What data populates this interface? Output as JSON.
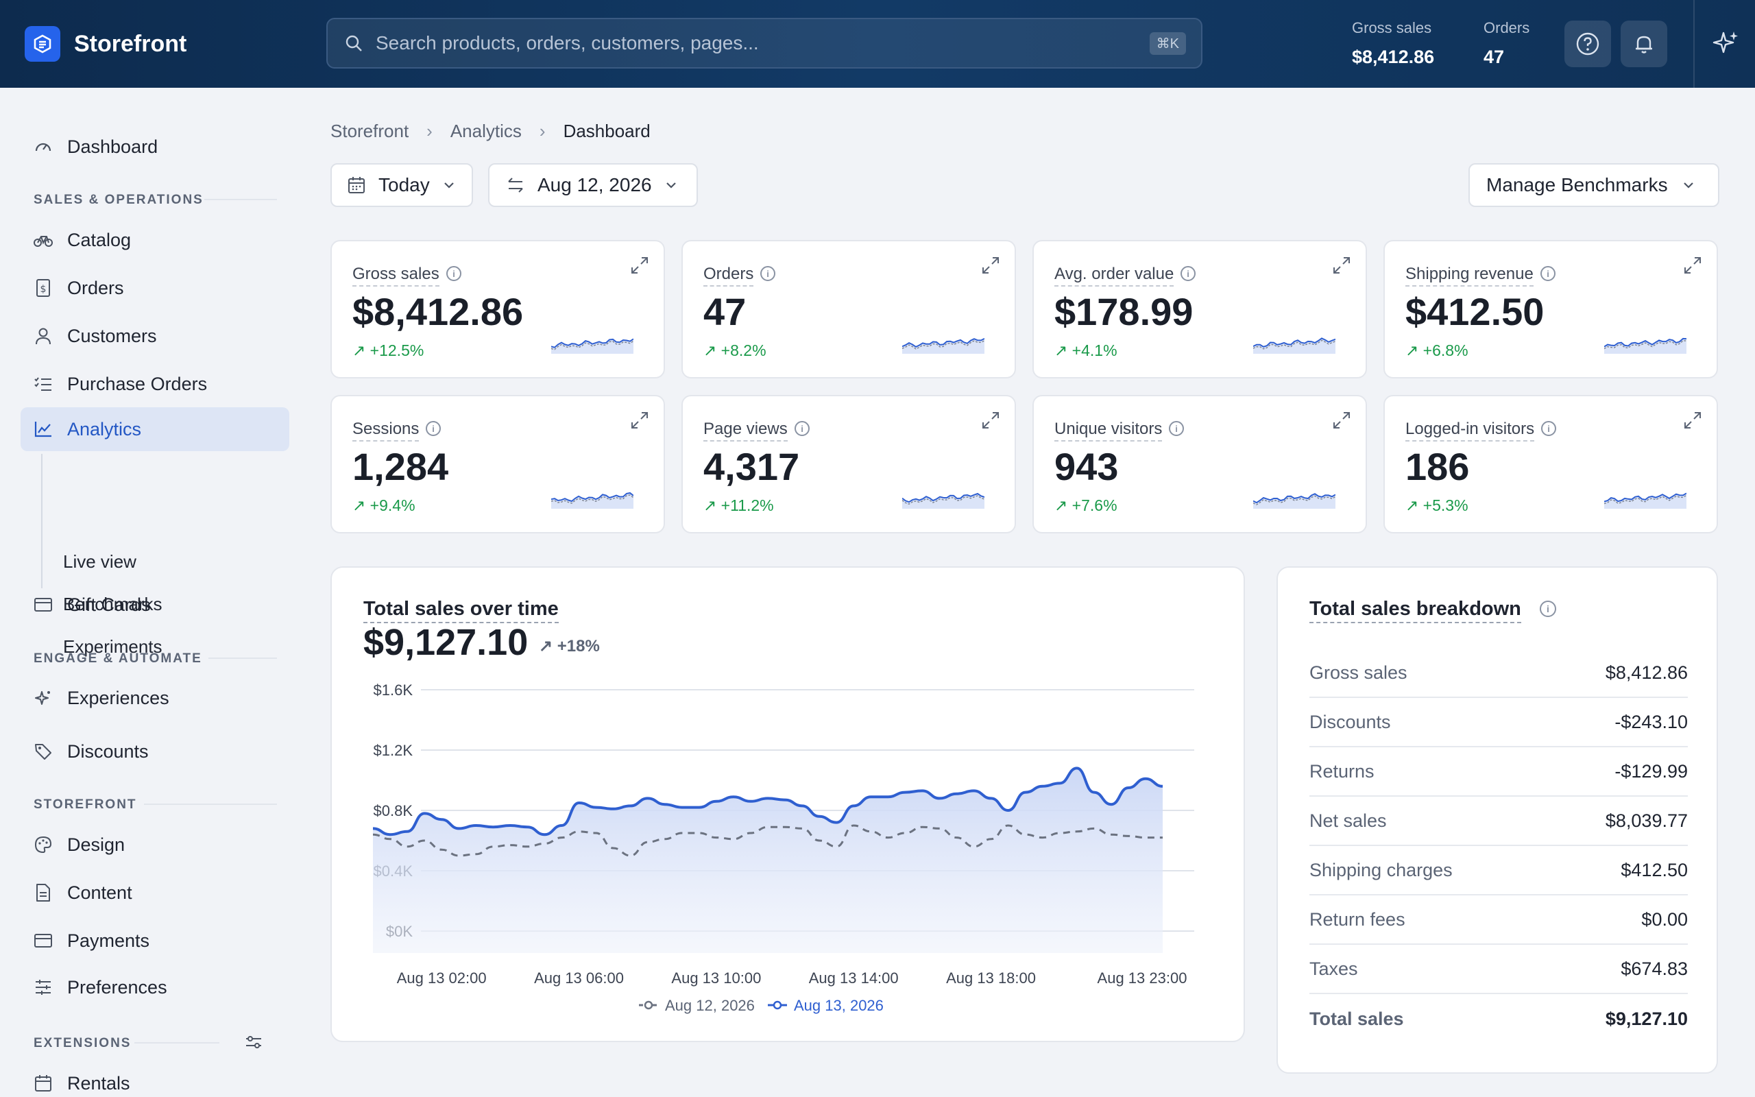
{
  "brand": {
    "name": "Storefront"
  },
  "search": {
    "placeholder": "Search products, orders, customers, pages...",
    "shortcut": "⌘K"
  },
  "header_stats": [
    {
      "label": "Gross sales",
      "value": "$8,412.86"
    },
    {
      "label": "Orders",
      "value": "47"
    }
  ],
  "sidebar": {
    "dashboard": "Dashboard",
    "section_sales": "SALES & OPERATIONS",
    "catalog": "Catalog",
    "orders": "Orders",
    "customers": "Customers",
    "purchase_orders": "Purchase Orders",
    "analytics": "Analytics",
    "live_view": "Live view",
    "benchmarks": "Benchmarks",
    "experiments": "Experiments",
    "gift_cards": "Gift Cards",
    "section_engage": "ENGAGE & AUTOMATE",
    "experiences": "Experiences",
    "discounts": "Discounts",
    "section_storefront": "STOREFRONT",
    "design": "Design",
    "content": "Content",
    "payments": "Payments",
    "preferences": "Preferences",
    "section_extensions": "EXTENSIONS",
    "rentals": "Rentals"
  },
  "breadcrumb": [
    "Storefront",
    "Analytics",
    "Dashboard"
  ],
  "controls": {
    "period": "Today",
    "compare_date": "Aug 12, 2026",
    "benchmarks": "Manage Benchmarks"
  },
  "kpis": [
    {
      "label": "Gross sales",
      "value": "$8,412.86",
      "change": "+12.5%"
    },
    {
      "label": "Orders",
      "value": "47",
      "change": "+8.2%"
    },
    {
      "label": "Avg. order value",
      "value": "$178.99",
      "change": "+4.1%"
    },
    {
      "label": "Shipping revenue",
      "value": "$412.50",
      "change": "+6.8%"
    },
    {
      "label": "Sessions",
      "value": "1,284",
      "change": "+9.4%"
    },
    {
      "label": "Page views",
      "value": "4,317",
      "change": "+11.2%"
    },
    {
      "label": "Unique visitors",
      "value": "943",
      "change": "+7.6%"
    },
    {
      "label": "Logged-in visitors",
      "value": "186",
      "change": "+5.3%"
    }
  ],
  "sales_chart": {
    "title": "Total sales over time",
    "total": "$9,127.10",
    "change": "+18%"
  },
  "chart_data": {
    "type": "area",
    "title": "Total sales over time",
    "x_ticks": [
      "Aug 13 02:00",
      "Aug 13 06:00",
      "Aug 13 10:00",
      "Aug 13 14:00",
      "Aug 13 18:00",
      "Aug 13 23:00"
    ],
    "y_ticks": [
      "$1.6K",
      "$1.2K",
      "$0.8K",
      "$0.4K",
      "$0K"
    ],
    "ylim": [
      0,
      1600
    ],
    "x": [
      0,
      0.5,
      1,
      1.5,
      2,
      2.5,
      3,
      3.5,
      4,
      4.5,
      5,
      5.5,
      6,
      6.5,
      7,
      7.5,
      8,
      8.5,
      9,
      9.5,
      10,
      10.5,
      11,
      11.5,
      12,
      12.5,
      13,
      13.5,
      14,
      14.5,
      15,
      15.5,
      16,
      16.5,
      17,
      17.5,
      18,
      18.5,
      19,
      19.5,
      20,
      20.5,
      21,
      21.5,
      22,
      22.5,
      23
    ],
    "series": [
      {
        "name": "Aug 12, 2026",
        "color": "#6b7280",
        "style": "dashed",
        "values": [
          640,
          610,
          560,
          600,
          540,
          500,
          510,
          560,
          570,
          560,
          580,
          620,
          660,
          650,
          550,
          500,
          590,
          610,
          650,
          650,
          620,
          610,
          650,
          690,
          690,
          680,
          600,
          560,
          700,
          660,
          620,
          650,
          690,
          680,
          620,
          560,
          610,
          700,
          640,
          620,
          650,
          660,
          680,
          640,
          630,
          620,
          620
        ]
      },
      {
        "name": "Aug 13, 2026",
        "color": "#2f5fd0",
        "style": "solid",
        "values": [
          680,
          640,
          660,
          780,
          740,
          680,
          700,
          690,
          700,
          690,
          640,
          700,
          850,
          820,
          810,
          830,
          880,
          840,
          820,
          820,
          860,
          890,
          860,
          880,
          870,
          830,
          760,
          720,
          830,
          890,
          890,
          920,
          930,
          880,
          910,
          930,
          880,
          800,
          920,
          960,
          980,
          1080,
          920,
          840,
          950,
          1010,
          960
        ]
      }
    ],
    "legend": "bottom"
  },
  "breakdown": {
    "title": "Total sales breakdown",
    "rows": [
      {
        "label": "Gross sales",
        "value": "$8,412.86"
      },
      {
        "label": "Discounts",
        "value": "-$243.10"
      },
      {
        "label": "Returns",
        "value": "-$129.99"
      },
      {
        "label": "Net sales",
        "value": "$8,039.77"
      },
      {
        "label": "Shipping charges",
        "value": "$412.50"
      },
      {
        "label": "Return fees",
        "value": "$0.00"
      },
      {
        "label": "Taxes",
        "value": "$674.83"
      },
      {
        "label": "Total sales",
        "value": "$9,127.10"
      }
    ]
  },
  "colors": {
    "accent": "#2563eb",
    "active_nav": "#dde5f5",
    "positive": "#1a9a4a",
    "header": "#0d2b4e"
  }
}
